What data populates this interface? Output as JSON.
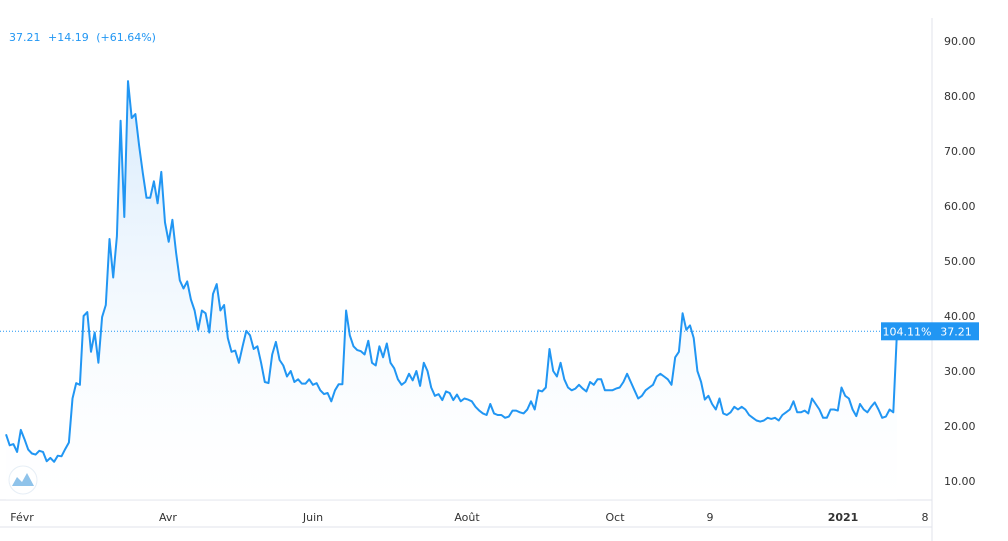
{
  "legend": {
    "value": "37.21",
    "change": "+14.19",
    "change_pct": "(+61.64%)"
  },
  "last_value_labels": {
    "percent": "104.11%",
    "value": "37.21"
  },
  "colors": {
    "line": "#2196f3",
    "area_top": "#cfe6fb",
    "area_bottom": "#ffffff",
    "label_bg": "#2196f3",
    "legend_text": "#2196f3",
    "grid_border": "#e0e3eb",
    "price_line": "#2196f3",
    "logo": "#8fc3ea"
  },
  "logo_icon": "tradingview-logo-icon",
  "chart_data": {
    "type": "area",
    "title": "",
    "xlabel": "",
    "ylabel": "",
    "ylim": [
      5,
      95
    ],
    "grid": false,
    "y_ticks": [
      "90.00",
      "80.00",
      "70.00",
      "60.00",
      "50.00",
      "40.00",
      "30.00",
      "20.00",
      "10.00"
    ],
    "x_ticks": [
      "Févr",
      "Avr",
      "Juin",
      "Août",
      "Oct",
      "9",
      "2021",
      "8"
    ],
    "series": [
      {
        "values": [
          18.5,
          16.5,
          16.7,
          15.3,
          19.3,
          17.6,
          15.7,
          15.0,
          14.8,
          15.5,
          15.3,
          13.6,
          14.2,
          13.5,
          14.6,
          14.5,
          15.8,
          17.0,
          25.0,
          27.8,
          27.5,
          40.0,
          40.7,
          33.5,
          37.0,
          31.5,
          39.8,
          42.0,
          54.0,
          47.0,
          54.5,
          75.5,
          58.0,
          82.7,
          76.0,
          76.7,
          71.0,
          66.0,
          61.5,
          61.5,
          64.5,
          60.5,
          66.2,
          57.0,
          53.5,
          57.5,
          51.5,
          46.5,
          45.0,
          46.3,
          43.0,
          41.0,
          37.5,
          41.0,
          40.5,
          37.0,
          44.0,
          45.8,
          41.0,
          42.0,
          36.0,
          33.5,
          33.7,
          31.5,
          34.5,
          37.3,
          36.5,
          34.0,
          34.5,
          31.5,
          28.0,
          27.8,
          33.0,
          35.3,
          32.0,
          31.0,
          29.0,
          30.0,
          28.0,
          28.5,
          27.7,
          27.7,
          28.5,
          27.5,
          27.8,
          26.5,
          25.8,
          26.0,
          24.5,
          26.5,
          27.6,
          27.6,
          41.0,
          36.5,
          34.5,
          33.8,
          33.6,
          33.0,
          35.5,
          31.5,
          31.0,
          34.5,
          32.5,
          35.0,
          31.5,
          30.5,
          28.5,
          27.5,
          28.0,
          29.5,
          28.3,
          30.0,
          27.3,
          31.5,
          30.0,
          27.0,
          25.5,
          25.8,
          24.7,
          26.3,
          26.0,
          24.7,
          25.7,
          24.5,
          25.0,
          24.8,
          24.5,
          23.5,
          22.8,
          22.3,
          22.0,
          24.0,
          22.3,
          22.0,
          22.0,
          21.5,
          21.7,
          22.8,
          22.8,
          22.5,
          22.3,
          23.0,
          24.5,
          23.0,
          26.5,
          26.3,
          27.0,
          34.0,
          30.0,
          29.0,
          31.5,
          28.5,
          27.0,
          26.5,
          26.8,
          27.5,
          26.8,
          26.3,
          28.0,
          27.5,
          28.5,
          28.5,
          26.5,
          26.5,
          26.5,
          26.8,
          27.0,
          28.0,
          29.5,
          28.0,
          26.5,
          25.0,
          25.5,
          26.5,
          27.0,
          27.5,
          29.0,
          29.5,
          29.0,
          28.5,
          27.5,
          32.5,
          33.5,
          40.5,
          37.5,
          38.3,
          36.0,
          30.0,
          28.0,
          24.8,
          25.5,
          24.0,
          23.0,
          25.0,
          22.3,
          22.0,
          22.5,
          23.5,
          23.0,
          23.5,
          23.0,
          22.0,
          21.5,
          21.0,
          20.8,
          21.0,
          21.5,
          21.3,
          21.5,
          21.0,
          22.0,
          22.5,
          23.0,
          24.5,
          22.5,
          22.5,
          22.8,
          22.3,
          25.0,
          24.0,
          23.0,
          21.5,
          21.5,
          23.0,
          23.0,
          22.8,
          27.0,
          25.5,
          25.0,
          23.0,
          21.8,
          24.0,
          23.0,
          22.5,
          23.5,
          24.3,
          23.0,
          21.5,
          21.7,
          23.0,
          22.5,
          37.21
        ]
      }
    ]
  }
}
